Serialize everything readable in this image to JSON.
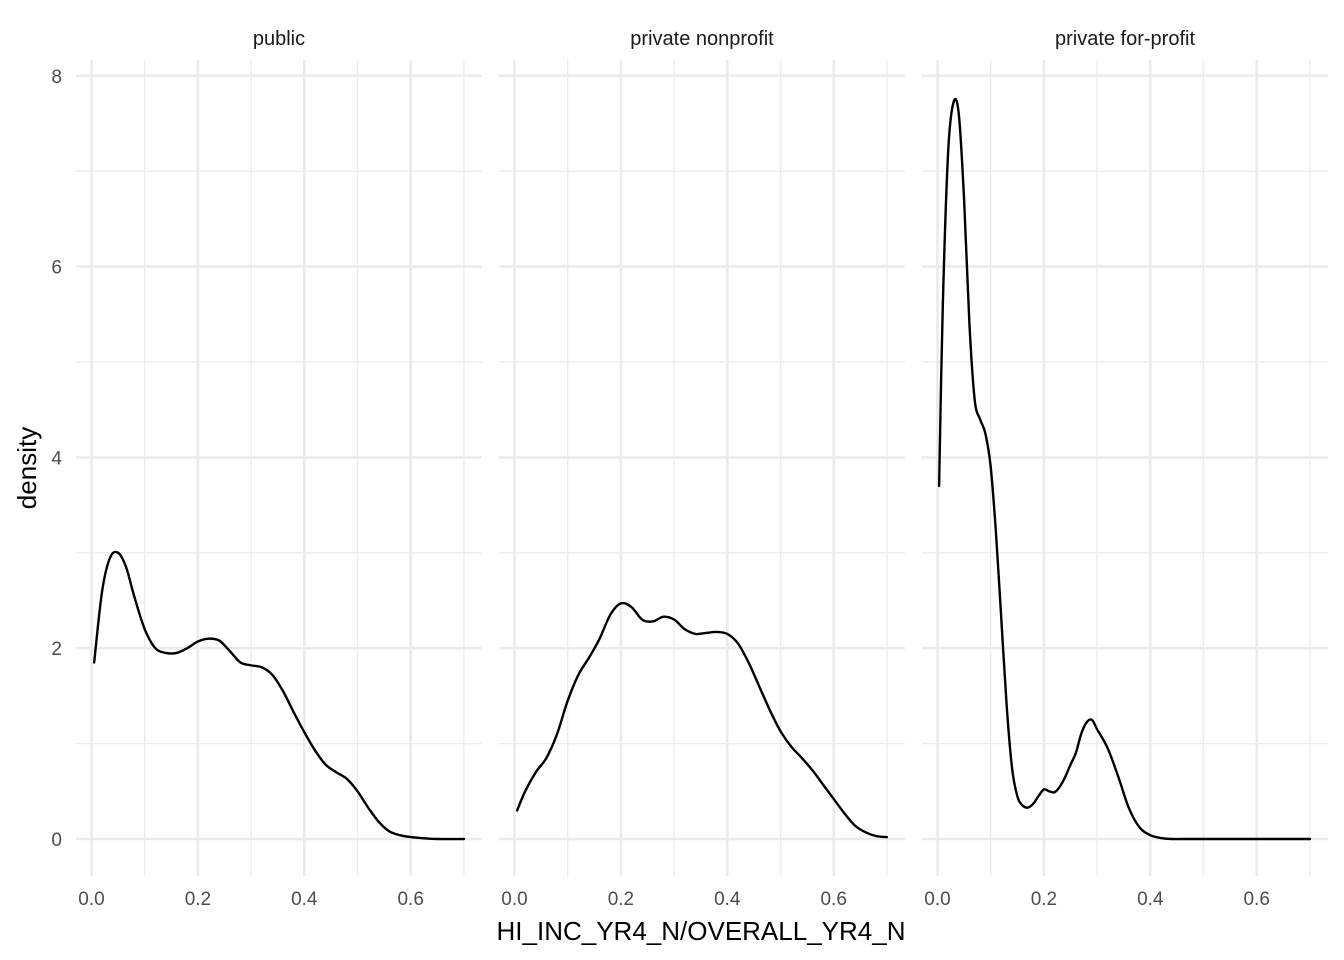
{
  "chart_data": {
    "type": "line",
    "xlabel": "HI_INC_YR4_N/OVERALL_YR4_N",
    "ylabel": "density",
    "xlim": [
      0,
      0.7
    ],
    "ylim": [
      0,
      8
    ],
    "x_ticks": [
      "0.0",
      "0.2",
      "0.4",
      "0.6"
    ],
    "y_ticks": [
      "0",
      "2",
      "4",
      "6",
      "8"
    ],
    "grid": true,
    "line_color": "#000000",
    "grid_color": "#ebebeb",
    "panels": [
      {
        "strip": "public",
        "x": [
          0.005,
          0.02,
          0.035,
          0.05,
          0.065,
          0.08,
          0.1,
          0.12,
          0.14,
          0.16,
          0.18,
          0.2,
          0.22,
          0.24,
          0.26,
          0.28,
          0.3,
          0.32,
          0.34,
          0.36,
          0.38,
          0.4,
          0.42,
          0.44,
          0.46,
          0.48,
          0.5,
          0.52,
          0.54,
          0.56,
          0.58,
          0.6,
          0.62,
          0.65,
          0.7
        ],
        "y": [
          1.85,
          2.6,
          2.95,
          3.0,
          2.85,
          2.55,
          2.2,
          2.0,
          1.95,
          1.95,
          2.0,
          2.07,
          2.1,
          2.08,
          1.97,
          1.85,
          1.82,
          1.8,
          1.72,
          1.55,
          1.33,
          1.12,
          0.93,
          0.78,
          0.7,
          0.63,
          0.5,
          0.33,
          0.18,
          0.08,
          0.04,
          0.02,
          0.01,
          0.0,
          0.0
        ]
      },
      {
        "strip": "private nonprofit",
        "x": [
          0.005,
          0.02,
          0.04,
          0.06,
          0.08,
          0.1,
          0.12,
          0.14,
          0.16,
          0.18,
          0.2,
          0.22,
          0.24,
          0.26,
          0.28,
          0.3,
          0.32,
          0.34,
          0.36,
          0.38,
          0.4,
          0.42,
          0.44,
          0.46,
          0.48,
          0.5,
          0.52,
          0.54,
          0.56,
          0.58,
          0.6,
          0.62,
          0.64,
          0.66,
          0.68,
          0.7
        ],
        "y": [
          0.3,
          0.5,
          0.7,
          0.85,
          1.1,
          1.45,
          1.72,
          1.9,
          2.1,
          2.35,
          2.47,
          2.43,
          2.3,
          2.28,
          2.33,
          2.3,
          2.2,
          2.15,
          2.16,
          2.17,
          2.15,
          2.05,
          1.85,
          1.6,
          1.35,
          1.13,
          0.97,
          0.85,
          0.72,
          0.57,
          0.42,
          0.27,
          0.14,
          0.07,
          0.03,
          0.02
        ]
      },
      {
        "strip": "private for-profit",
        "x": [
          0.003,
          0.01,
          0.02,
          0.03,
          0.04,
          0.05,
          0.06,
          0.07,
          0.08,
          0.09,
          0.1,
          0.11,
          0.12,
          0.13,
          0.14,
          0.15,
          0.16,
          0.17,
          0.18,
          0.19,
          0.2,
          0.21,
          0.22,
          0.23,
          0.24,
          0.25,
          0.26,
          0.27,
          0.28,
          0.29,
          0.3,
          0.32,
          0.34,
          0.36,
          0.38,
          0.4,
          0.42,
          0.44,
          0.46,
          0.48,
          0.5,
          0.55,
          0.6,
          0.65,
          0.7
        ],
        "y": [
          3.7,
          5.6,
          7.2,
          7.72,
          7.6,
          6.7,
          5.4,
          4.6,
          4.4,
          4.25,
          3.9,
          3.2,
          2.3,
          1.4,
          0.75,
          0.45,
          0.35,
          0.33,
          0.37,
          0.45,
          0.52,
          0.5,
          0.49,
          0.55,
          0.65,
          0.78,
          0.9,
          1.1,
          1.22,
          1.25,
          1.15,
          0.95,
          0.65,
          0.32,
          0.12,
          0.04,
          0.01,
          0.0,
          0.0,
          0.0,
          0.0,
          0.0,
          0.0,
          0.0,
          0.0
        ]
      }
    ]
  }
}
